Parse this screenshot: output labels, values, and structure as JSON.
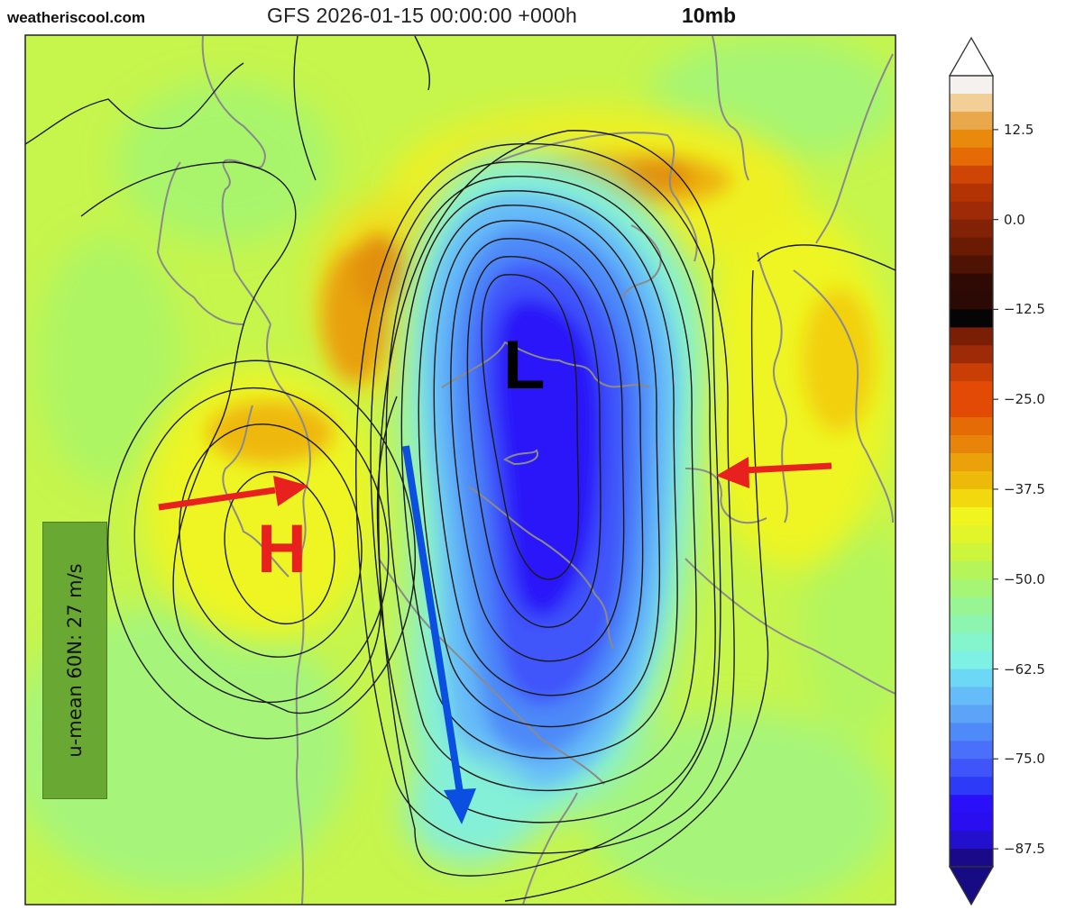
{
  "header": {
    "site": "weatheriscool.com",
    "title": "GFS 2026-01-15 00:00:00 +000h",
    "level": "10mb"
  },
  "annotations": {
    "low_label": "L",
    "high_label": "H",
    "umean_text": "u-mean 60N: 27 m/s",
    "arrow_colors": {
      "red": "#e8211e",
      "blue": "#0a4fe0"
    }
  },
  "colorbar": {
    "ticks": [
      "12.5",
      "0.0",
      "−12.5",
      "−25.0",
      "−37.5",
      "−50.0",
      "−62.5",
      "−75.0",
      "−87.5"
    ],
    "tick_values": [
      12.5,
      0.0,
      -12.5,
      -25.0,
      -37.5,
      -50.0,
      -62.5,
      -75.0,
      -87.5
    ],
    "range": [
      -90,
      20
    ],
    "step": 2.5,
    "extend": "both",
    "colors_top_to_bottom": [
      "#f4f1ee",
      "#f3cf98",
      "#eaa84c",
      "#e98a0d",
      "#e66b06",
      "#cf4506",
      "#b43305",
      "#9e2a08",
      "#812106",
      "#6b1a04",
      "#4f1303",
      "#2f0a04",
      "#2b0a05",
      "#050505",
      "#7b1e06",
      "#9e2a08",
      "#c83e05",
      "#e24a05",
      "#e24a05",
      "#e56b06",
      "#e8840a",
      "#eba20a",
      "#eeba0a",
      "#f2d80e",
      "#f0f520",
      "#e2f52a",
      "#cdf53c",
      "#b5f55a",
      "#a6f575",
      "#98f594",
      "#8ef5b0",
      "#84f5cc",
      "#7ef0e4",
      "#6cd8f5",
      "#66bcf8",
      "#5da4f8",
      "#4e8af8",
      "#4a6ffa",
      "#3f55fa",
      "#2d3bf8",
      "#2a10f8",
      "#2a0ef0",
      "#2310cc",
      "#1a0a8a"
    ],
    "over_color": "#ffffff",
    "under_color": "#160b82"
  },
  "chart_data": {
    "type": "heatmap",
    "title": "GFS 2026-01-15 00:00:00 +000h 10mb",
    "source_label": "weatheriscool.com",
    "variable": "10 mb temperature (filled, °C) with geopotential height contours",
    "projection": "north polar stereographic (Northern Hemisphere)",
    "colorbar_ticks": [
      12.5,
      0.0,
      -12.5,
      -25.0,
      -37.5,
      -50.0,
      -62.5,
      -75.0,
      -87.5
    ],
    "colorbar_range": [
      -90,
      20
    ],
    "features": [
      {
        "label": "L",
        "type": "polar vortex low",
        "position": "over Arctic near Greenland / North Pole",
        "approx_min_value": -85
      },
      {
        "label": "H",
        "type": "high (Aleutian high)",
        "position": "over eastern Siberia / Bering region",
        "approx_value": -40
      },
      {
        "label": "warm band",
        "position": "north of Europe / Siberia rim",
        "approx_value": -25
      }
    ],
    "annotation_text": "u-mean 60N: 27 m/s",
    "arrows": [
      {
        "color": "red",
        "direction": "eastward toward H / Bering Strait"
      },
      {
        "color": "red",
        "direction": "westward from Europe toward vortex"
      },
      {
        "color": "blue",
        "direction": "southward from Arctic toward North America"
      }
    ],
    "grid": false,
    "legend": "vertical colorbar on right"
  }
}
